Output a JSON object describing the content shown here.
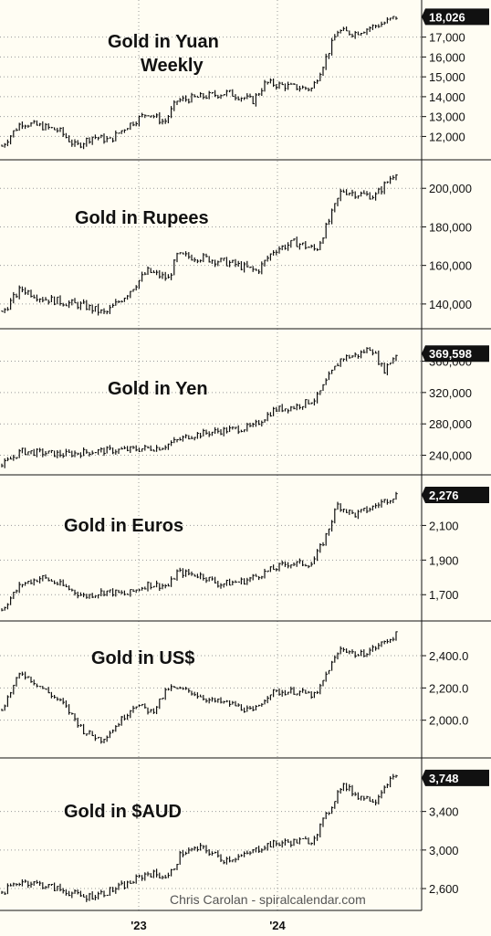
{
  "chart_data": {
    "type": "line",
    "credit": "Chris Carolan - spiralcalendar.com",
    "x_ticks": [
      "'23",
      "'24"
    ],
    "grid": true,
    "colors": {
      "background": "#fffdf3",
      "price": "#111111",
      "grid": "#9a9a9a",
      "badge": "#111111"
    },
    "panels": [
      {
        "title": [
          "Gold in Yuan",
          "Weekly"
        ],
        "last_label": "18,026",
        "y_ticks": [
          12000,
          13000,
          14000,
          15000,
          16000,
          17000
        ],
        "y_tick_labels": [
          "12,000",
          "13,000",
          "14,000",
          "15,000",
          "16,000",
          "17,000"
        ],
        "ylim": [
          11100,
          18500
        ],
        "series": [
          {
            "t": 0.0,
            "v": 11400
          },
          {
            "t": 0.05,
            "v": 12700
          },
          {
            "t": 0.1,
            "v": 12500
          },
          {
            "t": 0.14,
            "v": 12300
          },
          {
            "t": 0.18,
            "v": 11500
          },
          {
            "t": 0.22,
            "v": 12000
          },
          {
            "t": 0.26,
            "v": 11800
          },
          {
            "t": 0.3,
            "v": 12500
          },
          {
            "t": 0.35,
            "v": 13200
          },
          {
            "t": 0.39,
            "v": 12700
          },
          {
            "t": 0.42,
            "v": 13800
          },
          {
            "t": 0.48,
            "v": 14000
          },
          {
            "t": 0.54,
            "v": 14200
          },
          {
            "t": 0.6,
            "v": 13800
          },
          {
            "t": 0.63,
            "v": 14700
          },
          {
            "t": 0.69,
            "v": 14500
          },
          {
            "t": 0.74,
            "v": 14400
          },
          {
            "t": 0.77,
            "v": 15800
          },
          {
            "t": 0.8,
            "v": 17300
          },
          {
            "t": 0.84,
            "v": 17200
          },
          {
            "t": 0.88,
            "v": 17500
          },
          {
            "t": 0.91,
            "v": 17700
          },
          {
            "t": 0.94,
            "v": 18026
          }
        ]
      },
      {
        "title": [
          "Gold in Rupees"
        ],
        "last_label": "",
        "y_ticks": [
          140000,
          160000,
          180000,
          200000
        ],
        "y_tick_labels": [
          "140,000",
          "160,000",
          "180,000",
          "200,000"
        ],
        "ylim": [
          130000,
          211000
        ],
        "series": [
          {
            "t": 0.0,
            "v": 134000
          },
          {
            "t": 0.05,
            "v": 148000
          },
          {
            "t": 0.1,
            "v": 143000
          },
          {
            "t": 0.15,
            "v": 141000
          },
          {
            "t": 0.2,
            "v": 139000
          },
          {
            "t": 0.25,
            "v": 135000
          },
          {
            "t": 0.3,
            "v": 145000
          },
          {
            "t": 0.35,
            "v": 157000
          },
          {
            "t": 0.4,
            "v": 153000
          },
          {
            "t": 0.42,
            "v": 165000
          },
          {
            "t": 0.48,
            "v": 164000
          },
          {
            "t": 0.55,
            "v": 161000
          },
          {
            "t": 0.61,
            "v": 157000
          },
          {
            "t": 0.65,
            "v": 168000
          },
          {
            "t": 0.7,
            "v": 172000
          },
          {
            "t": 0.75,
            "v": 168000
          },
          {
            "t": 0.78,
            "v": 183000
          },
          {
            "t": 0.81,
            "v": 199000
          },
          {
            "t": 0.85,
            "v": 197000
          },
          {
            "t": 0.89,
            "v": 196000
          },
          {
            "t": 0.94,
            "v": 209000
          }
        ]
      },
      {
        "title": [
          "Gold in Yen"
        ],
        "last_label": "369,598",
        "y_ticks": [
          240000,
          280000,
          320000,
          360000
        ],
        "y_tick_labels": [
          "240,000",
          "280,000",
          "320,000",
          "360,000"
        ],
        "ylim": [
          222000,
          392000
        ],
        "series": [
          {
            "t": 0.0,
            "v": 225000
          },
          {
            "t": 0.05,
            "v": 245000
          },
          {
            "t": 0.1,
            "v": 243000
          },
          {
            "t": 0.15,
            "v": 241000
          },
          {
            "t": 0.22,
            "v": 245000
          },
          {
            "t": 0.3,
            "v": 247000
          },
          {
            "t": 0.38,
            "v": 250000
          },
          {
            "t": 0.45,
            "v": 265000
          },
          {
            "t": 0.52,
            "v": 271000
          },
          {
            "t": 0.6,
            "v": 276000
          },
          {
            "t": 0.65,
            "v": 298000
          },
          {
            "t": 0.7,
            "v": 302000
          },
          {
            "t": 0.75,
            "v": 312000
          },
          {
            "t": 0.78,
            "v": 340000
          },
          {
            "t": 0.81,
            "v": 364000
          },
          {
            "t": 0.85,
            "v": 368000
          },
          {
            "t": 0.88,
            "v": 378000
          },
          {
            "t": 0.91,
            "v": 348000
          },
          {
            "t": 0.94,
            "v": 369598
          }
        ]
      },
      {
        "title": [
          "Gold in Euros"
        ],
        "last_label": "2,276",
        "y_ticks": [
          1700,
          1900,
          2100
        ],
        "y_tick_labels": [
          "1,700",
          "1,900",
          "2,100"
        ],
        "ylim": [
          1580,
          2350
        ],
        "series": [
          {
            "t": 0.0,
            "v": 1600
          },
          {
            "t": 0.05,
            "v": 1760
          },
          {
            "t": 0.1,
            "v": 1800
          },
          {
            "t": 0.15,
            "v": 1750
          },
          {
            "t": 0.2,
            "v": 1690
          },
          {
            "t": 0.25,
            "v": 1720
          },
          {
            "t": 0.3,
            "v": 1700
          },
          {
            "t": 0.35,
            "v": 1760
          },
          {
            "t": 0.4,
            "v": 1750
          },
          {
            "t": 0.42,
            "v": 1830
          },
          {
            "t": 0.48,
            "v": 1810
          },
          {
            "t": 0.52,
            "v": 1760
          },
          {
            "t": 0.58,
            "v": 1780
          },
          {
            "t": 0.63,
            "v": 1830
          },
          {
            "t": 0.68,
            "v": 1880
          },
          {
            "t": 0.74,
            "v": 1880
          },
          {
            "t": 0.77,
            "v": 2020
          },
          {
            "t": 0.8,
            "v": 2220
          },
          {
            "t": 0.84,
            "v": 2160
          },
          {
            "t": 0.88,
            "v": 2200
          },
          {
            "t": 0.91,
            "v": 2240
          },
          {
            "t": 0.94,
            "v": 2276
          }
        ]
      },
      {
        "title": [
          "Gold in US$"
        ],
        "last_label": "",
        "y_ticks": [
          2000,
          2200,
          2400
        ],
        "y_tick_labels": [
          "2,000.0",
          "2,200.0",
          "2,400.0"
        ],
        "ylim": [
          1800,
          2570
        ],
        "series": [
          {
            "t": 0.0,
            "v": 2050
          },
          {
            "t": 0.05,
            "v": 2300
          },
          {
            "t": 0.1,
            "v": 2200
          },
          {
            "t": 0.15,
            "v": 2100
          },
          {
            "t": 0.2,
            "v": 1930
          },
          {
            "t": 0.24,
            "v": 1880
          },
          {
            "t": 0.27,
            "v": 1950
          },
          {
            "t": 0.32,
            "v": 2100
          },
          {
            "t": 0.36,
            "v": 2050
          },
          {
            "t": 0.4,
            "v": 2200
          },
          {
            "t": 0.45,
            "v": 2180
          },
          {
            "t": 0.5,
            "v": 2120
          },
          {
            "t": 0.55,
            "v": 2100
          },
          {
            "t": 0.6,
            "v": 2050
          },
          {
            "t": 0.64,
            "v": 2170
          },
          {
            "t": 0.7,
            "v": 2180
          },
          {
            "t": 0.75,
            "v": 2150
          },
          {
            "t": 0.78,
            "v": 2320
          },
          {
            "t": 0.81,
            "v": 2450
          },
          {
            "t": 0.85,
            "v": 2400
          },
          {
            "t": 0.89,
            "v": 2450
          },
          {
            "t": 0.94,
            "v": 2530
          }
        ]
      },
      {
        "title": [
          "Gold in $AUD"
        ],
        "last_label": "3,748",
        "y_ticks": [
          2600,
          3000,
          3400
        ],
        "y_tick_labels": [
          "2,600",
          "3,000",
          "3,400"
        ],
        "ylim": [
          2430,
          3880
        ],
        "series": [
          {
            "t": 0.0,
            "v": 2550
          },
          {
            "t": 0.05,
            "v": 2680
          },
          {
            "t": 0.1,
            "v": 2640
          },
          {
            "t": 0.15,
            "v": 2580
          },
          {
            "t": 0.2,
            "v": 2510
          },
          {
            "t": 0.25,
            "v": 2560
          },
          {
            "t": 0.3,
            "v": 2640
          },
          {
            "t": 0.35,
            "v": 2760
          },
          {
            "t": 0.4,
            "v": 2720
          },
          {
            "t": 0.43,
            "v": 2970
          },
          {
            "t": 0.48,
            "v": 3020
          },
          {
            "t": 0.53,
            "v": 2900
          },
          {
            "t": 0.58,
            "v": 2940
          },
          {
            "t": 0.63,
            "v": 3050
          },
          {
            "t": 0.68,
            "v": 3080
          },
          {
            "t": 0.74,
            "v": 3100
          },
          {
            "t": 0.78,
            "v": 3400
          },
          {
            "t": 0.81,
            "v": 3680
          },
          {
            "t": 0.85,
            "v": 3560
          },
          {
            "t": 0.89,
            "v": 3520
          },
          {
            "t": 0.92,
            "v": 3720
          },
          {
            "t": 0.94,
            "v": 3748
          }
        ]
      }
    ]
  }
}
